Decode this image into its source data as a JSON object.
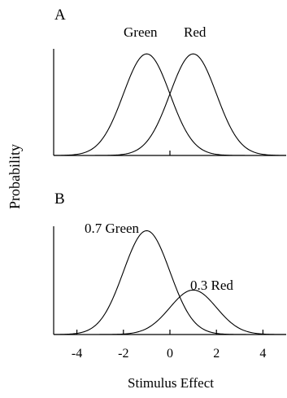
{
  "figure": {
    "ylabel": "Probability",
    "xlabel": "Stimulus Effect"
  },
  "chart_data": [
    {
      "type": "line",
      "panel_label": "A",
      "xlim": [
        -5,
        5
      ],
      "ylim": [
        0,
        1.05
      ],
      "x_ticks": [
        0
      ],
      "x_tick_labels": [],
      "series": [
        {
          "name": "Green",
          "mean": -1,
          "sd": 1,
          "weight": 1.0
        },
        {
          "name": "Red",
          "mean": 1,
          "sd": 1,
          "weight": 1.0
        }
      ]
    },
    {
      "type": "line",
      "panel_label": "B",
      "xlim": [
        -5,
        5
      ],
      "ylim": [
        0,
        0.73
      ],
      "x_ticks": [
        -4,
        -2,
        0,
        2,
        4
      ],
      "x_tick_labels": [
        "-4",
        "-2",
        "0",
        "2",
        "4"
      ],
      "series": [
        {
          "name": "0.7 Green",
          "mean": -1,
          "sd": 1,
          "weight": 0.7
        },
        {
          "name": "0.3 Red",
          "mean": 1,
          "sd": 1,
          "weight": 0.3
        }
      ]
    }
  ]
}
